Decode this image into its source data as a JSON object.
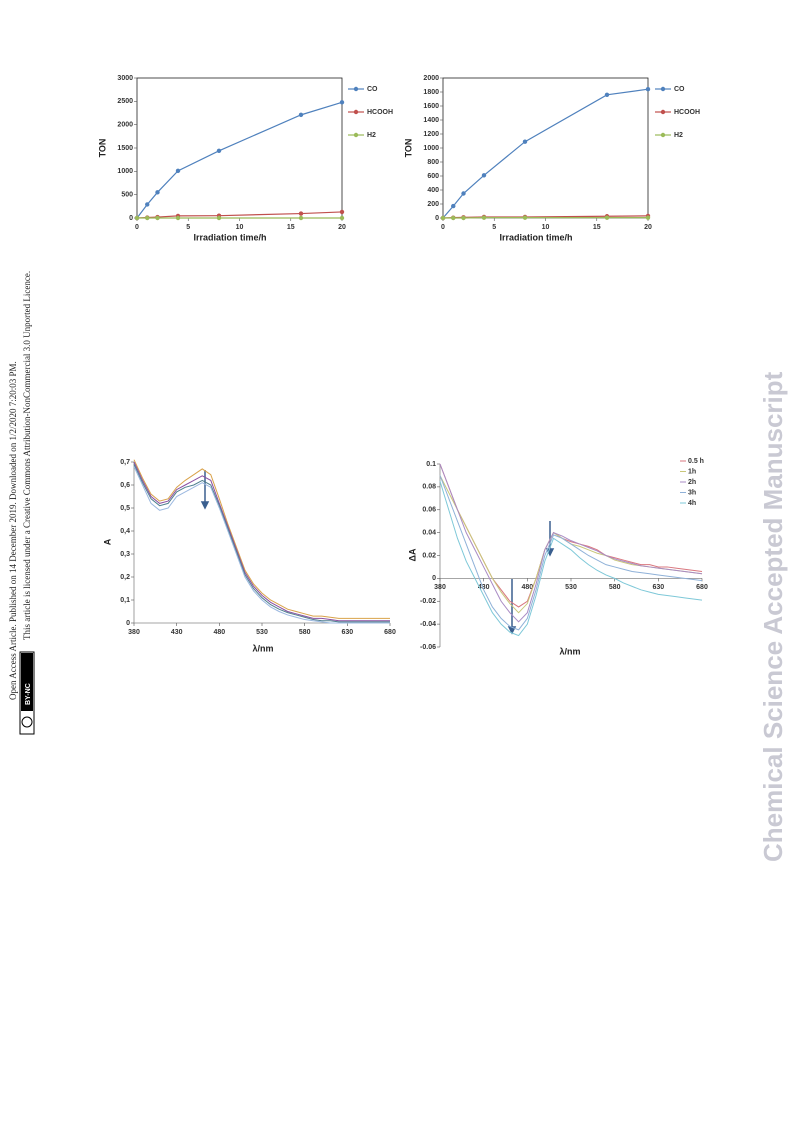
{
  "sidebar": {
    "line1": "Open Access Article. Published on 14 December 2019. Downloaded on 1/2/2020 7:20:03 PM.",
    "line2": "This article is licensed under a Creative Commons Attribution-NonCommercial 3.0 Unported Licence.",
    "badge": "BY-NC"
  },
  "watermark": "Chemical Science Accepted Manuscript",
  "chart_data": [
    {
      "type": "line",
      "x_label": "Irradiation time/h",
      "y_label": "TON",
      "markers": true,
      "legend": "right",
      "x": [
        0,
        1,
        2,
        4,
        8,
        16,
        20
      ],
      "series": [
        {
          "name": "CO",
          "color": "#4f81bd",
          "values": [
            0,
            290,
            550,
            1010,
            1440,
            2210,
            2480
          ]
        },
        {
          "name": "HCOOH",
          "color": "#c0504d",
          "values": [
            0,
            10,
            20,
            45,
            50,
            95,
            130
          ]
        },
        {
          "name": "H2",
          "color": "#9bbb59",
          "values": [
            0,
            0,
            0,
            0,
            0,
            0,
            0
          ]
        }
      ],
      "xlim": [
        0,
        20
      ],
      "xticks": [
        0,
        5,
        10,
        15,
        20
      ],
      "ylim": [
        0,
        3000
      ],
      "yticks": [
        0,
        500,
        1000,
        1500,
        2000,
        2500,
        3000
      ]
    },
    {
      "type": "line",
      "x_label": "Irradiation time/h",
      "y_label": "TON",
      "markers": true,
      "legend": "right",
      "x": [
        0,
        1,
        2,
        4,
        8,
        16,
        20
      ],
      "series": [
        {
          "name": "CO",
          "color": "#4f81bd",
          "values": [
            0,
            170,
            350,
            610,
            1090,
            1760,
            1840
          ]
        },
        {
          "name": "HCOOH",
          "color": "#c0504d",
          "values": [
            0,
            5,
            10,
            15,
            15,
            25,
            30
          ]
        },
        {
          "name": "H2",
          "color": "#9bbb59",
          "values": [
            0,
            0,
            0,
            5,
            5,
            5,
            5
          ]
        }
      ],
      "xlim": [
        0,
        20
      ],
      "xticks": [
        0,
        5,
        10,
        15,
        20
      ],
      "ylim": [
        0,
        2000
      ],
      "yticks": [
        0,
        200,
        400,
        600,
        800,
        1000,
        1200,
        1400,
        1600,
        1800,
        2000
      ]
    },
    {
      "type": "line",
      "x_label": "λ/nm",
      "y_label": "A",
      "markers": false,
      "x": [
        380,
        390,
        400,
        410,
        420,
        430,
        440,
        450,
        460,
        470,
        480,
        490,
        500,
        510,
        520,
        530,
        540,
        550,
        560,
        570,
        580,
        590,
        600,
        610,
        620,
        630,
        640,
        650,
        660,
        670,
        680
      ],
      "series": [
        {
          "color": "#d9a24a",
          "values": [
            0.71,
            0.63,
            0.56,
            0.53,
            0.54,
            0.59,
            0.62,
            0.645,
            0.67,
            0.645,
            0.54,
            0.43,
            0.33,
            0.23,
            0.17,
            0.13,
            0.1,
            0.08,
            0.06,
            0.05,
            0.04,
            0.03,
            0.03,
            0.025,
            0.02,
            0.02,
            0.02,
            0.02,
            0.02,
            0.02,
            0.02
          ]
        },
        {
          "color": "#8a4fa0",
          "values": [
            0.7,
            0.62,
            0.55,
            0.52,
            0.53,
            0.58,
            0.6,
            0.62,
            0.64,
            0.62,
            0.52,
            0.42,
            0.32,
            0.22,
            0.16,
            0.12,
            0.09,
            0.07,
            0.05,
            0.04,
            0.03,
            0.02,
            0.02,
            0.015,
            0.01,
            0.01,
            0.01,
            0.01,
            0.01,
            0.01,
            0.01
          ]
        },
        {
          "color": "#4f7f8f",
          "values": [
            0.69,
            0.61,
            0.54,
            0.51,
            0.52,
            0.57,
            0.59,
            0.6,
            0.62,
            0.6,
            0.51,
            0.41,
            0.31,
            0.21,
            0.15,
            0.11,
            0.08,
            0.06,
            0.045,
            0.035,
            0.025,
            0.015,
            0.01,
            0.01,
            0.005,
            0.005,
            0.005,
            0.005,
            0.005,
            0.005,
            0.005
          ]
        },
        {
          "color": "#9bb8e0",
          "values": [
            0.68,
            0.6,
            0.52,
            0.49,
            0.5,
            0.55,
            0.57,
            0.59,
            0.61,
            0.59,
            0.5,
            0.4,
            0.3,
            0.2,
            0.14,
            0.1,
            0.07,
            0.05,
            0.035,
            0.025,
            0.015,
            0.01,
            0.005,
            0,
            0,
            0,
            0,
            0,
            0,
            0,
            0
          ]
        }
      ],
      "xlim": [
        380,
        680
      ],
      "xticks": [
        380,
        430,
        480,
        530,
        580,
        630,
        680
      ],
      "ylim": [
        0,
        0.7
      ],
      "yticks": [
        0,
        {
          "value": 0.1,
          "label": "0,1"
        },
        {
          "value": 0.2,
          "label": "0,2"
        },
        {
          "value": 0.3,
          "label": "0,3"
        },
        {
          "value": 0.4,
          "label": "0,4"
        },
        {
          "value": 0.5,
          "label": "0,5"
        },
        {
          "value": 0.6,
          "label": "0,6"
        },
        {
          "value": 0.7,
          "label": "0,7"
        }
      ]
    },
    {
      "type": "line",
      "x_label": "λ/nm",
      "y_label": "ΔA",
      "markers": false,
      "legend": "top right",
      "x": [
        380,
        390,
        400,
        410,
        420,
        430,
        440,
        450,
        460,
        470,
        480,
        490,
        500,
        510,
        520,
        530,
        540,
        550,
        560,
        570,
        580,
        590,
        600,
        610,
        620,
        630,
        640,
        650,
        660,
        670,
        680
      ],
      "series": [
        {
          "name": "0.5 h",
          "color": "#d9777f",
          "values": [
            0.1,
            0.08,
            0.06,
            0.045,
            0.03,
            0.015,
            0,
            -0.01,
            -0.02,
            -0.025,
            -0.02,
            0,
            0.025,
            0.04,
            0.035,
            0.032,
            0.03,
            0.028,
            0.025,
            0.02,
            0.018,
            0.016,
            0.014,
            0.012,
            0.012,
            0.01,
            0.01,
            0.009,
            0.008,
            0.007,
            0.006
          ]
        },
        {
          "name": "1h",
          "color": "#c9c77a",
          "values": [
            0.09,
            0.075,
            0.06,
            0.045,
            0.03,
            0.015,
            0,
            -0.012,
            -0.022,
            -0.03,
            -0.022,
            0,
            0.025,
            0.04,
            0.035,
            0.03,
            0.028,
            0.025,
            0.022,
            0.02,
            0.016,
            0.014,
            0.012,
            0.011,
            0.01,
            0.009,
            0.008,
            0.007,
            0.006,
            0.005,
            0.004
          ]
        },
        {
          "name": "2h",
          "color": "#a98bc4",
          "values": [
            0.1,
            0.08,
            0.06,
            0.04,
            0.025,
            0.01,
            -0.005,
            -0.02,
            -0.03,
            -0.038,
            -0.03,
            -0.005,
            0.025,
            0.04,
            0.037,
            0.033,
            0.03,
            0.027,
            0.024,
            0.02,
            0.017,
            0.015,
            0.013,
            0.011,
            0.01,
            0.009,
            0.008,
            0.007,
            0.006,
            0.005,
            0.004
          ]
        },
        {
          "name": "3h",
          "color": "#8fb1d8",
          "values": [
            0.09,
            0.07,
            0.05,
            0.03,
            0.01,
            -0.01,
            -0.025,
            -0.035,
            -0.042,
            -0.045,
            -0.035,
            -0.01,
            0.02,
            0.038,
            0.035,
            0.03,
            0.025,
            0.02,
            0.016,
            0.012,
            0.01,
            0.008,
            0.006,
            0.005,
            0.004,
            0.003,
            0.002,
            0.001,
            0,
            -0.001,
            -0.002
          ]
        },
        {
          "name": "4h",
          "color": "#7ec8d8",
          "values": [
            0.085,
            0.06,
            0.035,
            0.015,
            0,
            -0.015,
            -0.03,
            -0.04,
            -0.047,
            -0.05,
            -0.04,
            -0.015,
            0.015,
            0.035,
            0.03,
            0.025,
            0.018,
            0.012,
            0.007,
            0.003,
            0,
            -0.004,
            -0.007,
            -0.01,
            -0.012,
            -0.014,
            -0.015,
            -0.016,
            -0.017,
            -0.018,
            -0.019
          ]
        }
      ],
      "xlim": [
        380,
        680
      ],
      "xticks": [
        380,
        430,
        480,
        530,
        580,
        630,
        680
      ],
      "ylim": [
        -0.06,
        0.1
      ],
      "yticks": [
        -0.06,
        -0.04,
        -0.02,
        0,
        0.02,
        0.04,
        0.06,
        0.08,
        0.1
      ]
    }
  ]
}
